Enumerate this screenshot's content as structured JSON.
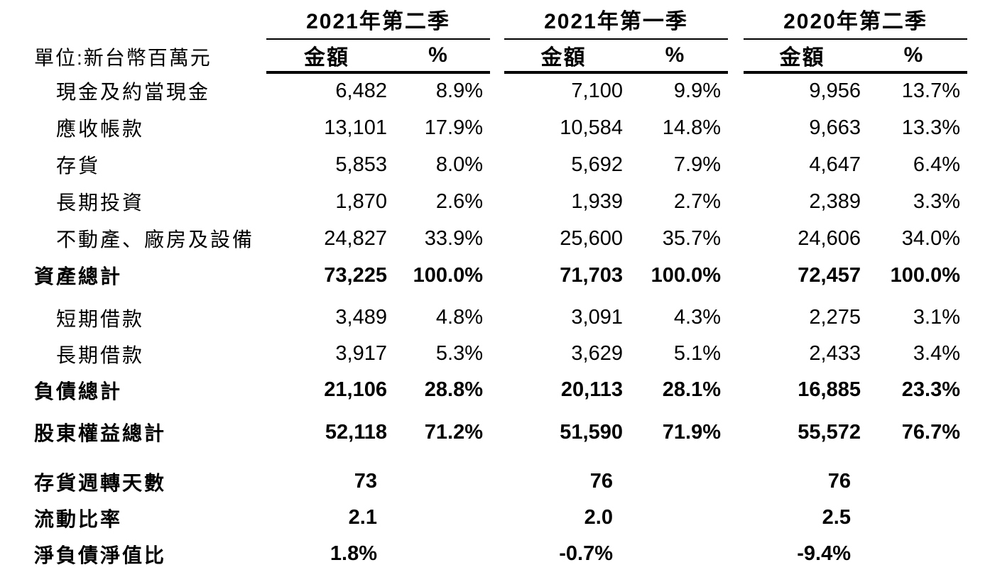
{
  "unit_label": "單位:新台幣百萬元",
  "columns": [
    {
      "period": "2021年第二季",
      "amount_header": "金額",
      "percent_header": "%"
    },
    {
      "period": "2021年第一季",
      "amount_header": "金額",
      "percent_header": "%"
    },
    {
      "period": "2020年第二季",
      "amount_header": "金額",
      "percent_header": "%"
    }
  ],
  "rows": [
    {
      "label": "現金及約當現金",
      "cells": [
        "6,482",
        "8.9%",
        "7,100",
        "9.9%",
        "9,956",
        "13.7%"
      ]
    },
    {
      "label": "應收帳款",
      "cells": [
        "13,101",
        "17.9%",
        "10,584",
        "14.8%",
        "9,663",
        "13.3%"
      ]
    },
    {
      "label": "存貨",
      "cells": [
        "5,853",
        "8.0%",
        "5,692",
        "7.9%",
        "4,647",
        "6.4%"
      ]
    },
    {
      "label": "長期投資",
      "cells": [
        "1,870",
        "2.6%",
        "1,939",
        "2.7%",
        "2,389",
        "3.3%"
      ]
    },
    {
      "label": "不動產、廠房及設備",
      "cells": [
        "24,827",
        "33.9%",
        "25,600",
        "35.7%",
        "24,606",
        "34.0%"
      ]
    },
    {
      "label": "資產總計",
      "cells": [
        "73,225",
        "100.0%",
        "71,703",
        "100.0%",
        "72,457",
        "100.0%"
      ]
    },
    {
      "label": "短期借款",
      "cells": [
        "3,489",
        "4.8%",
        "3,091",
        "4.3%",
        "2,275",
        "3.1%"
      ]
    },
    {
      "label": "長期借款",
      "cells": [
        "3,917",
        "5.3%",
        "3,629",
        "5.1%",
        "2,433",
        "3.4%"
      ]
    },
    {
      "label": "負債總計",
      "cells": [
        "21,106",
        "28.8%",
        "20,113",
        "28.1%",
        "16,885",
        "23.3%"
      ]
    },
    {
      "label": "股東權益總計",
      "cells": [
        "52,118",
        "71.2%",
        "51,590",
        "71.9%",
        "55,572",
        "76.7%"
      ]
    },
    {
      "label": "存貨週轉天數",
      "cells": [
        "73",
        "",
        "76",
        "",
        "76",
        ""
      ]
    },
    {
      "label": "流動比率",
      "cells": [
        "2.1",
        "",
        "2.0",
        "",
        "2.5",
        ""
      ]
    },
    {
      "label": "淨負債淨值比",
      "cells": [
        "1.8%",
        "",
        "-0.7%",
        "",
        "-9.4%",
        ""
      ]
    }
  ],
  "text_color": "#000000",
  "background_color": "#ffffff"
}
